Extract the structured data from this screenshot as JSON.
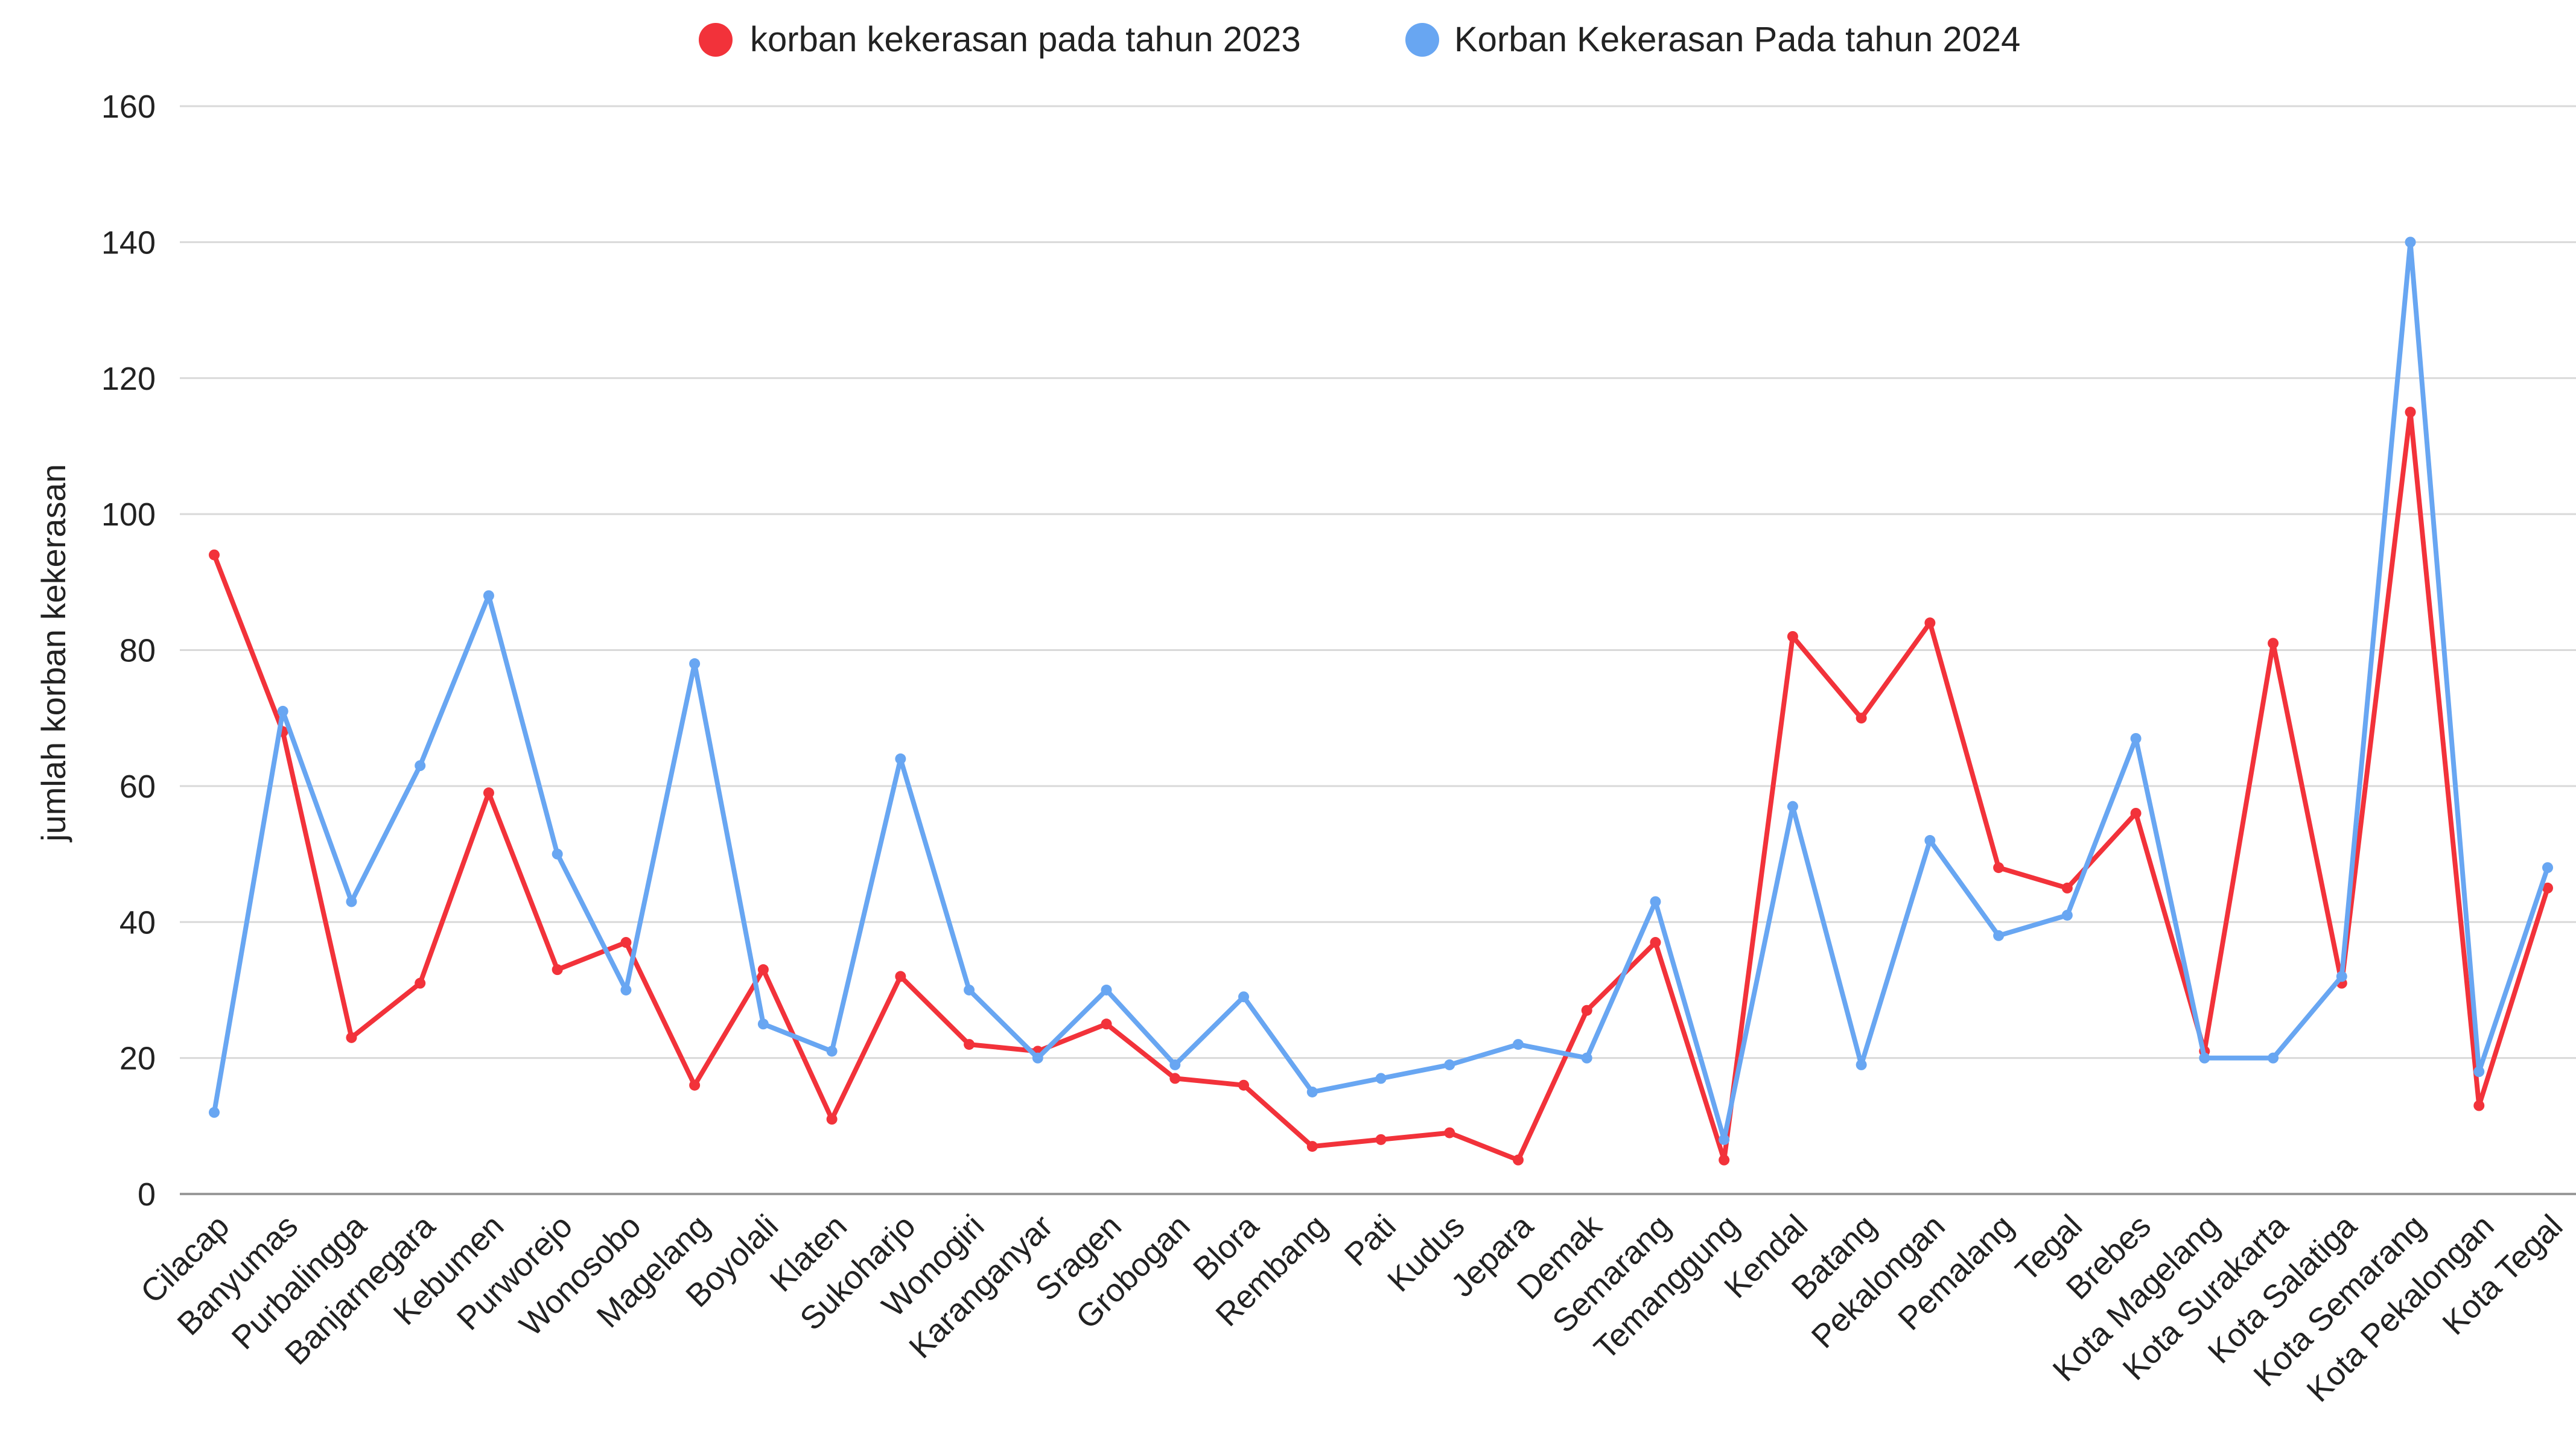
{
  "chart_data": {
    "type": "line",
    "title": "",
    "xlabel": "",
    "ylabel": "jumlah korban kekerasan",
    "ylim": [
      0,
      160
    ],
    "yticks": [
      0,
      20,
      40,
      60,
      80,
      100,
      120,
      140,
      160
    ],
    "grid": true,
    "legend_position": "top-center",
    "categories": [
      "Cilacap",
      "Banyumas",
      "Purbalingga",
      "Banjarnegara",
      "Kebumen",
      "Purworejo",
      "Wonosobo",
      "Magelang",
      "Boyolali",
      "Klaten",
      "Sukoharjo",
      "Wonogiri",
      "Karanganyar",
      "Sragen",
      "Grobogan",
      "Blora",
      "Rembang",
      "Pati",
      "Kudus",
      "Jepara",
      "Demak",
      "Semarang",
      "Temanggung",
      "Kendal",
      "Batang",
      "Pekalongan",
      "Pemalang",
      "Tegal",
      "Brebes",
      "Kota Magelang",
      "Kota Surakarta",
      "Kota Salatiga",
      "Kota Semarang",
      "Kota Pekalongan",
      "Kota Tegal"
    ],
    "series": [
      {
        "name": "korban kekerasan pada tahun 2023",
        "color": "#f2323a",
        "values": [
          94,
          68,
          23,
          31,
          59,
          33,
          37,
          16,
          33,
          11,
          32,
          22,
          21,
          25,
          17,
          16,
          7,
          8,
          9,
          5,
          27,
          37,
          5,
          82,
          70,
          84,
          48,
          45,
          56,
          21,
          81,
          31,
          115,
          13,
          45
        ]
      },
      {
        "name": "Korban Kekerasan Pada tahun 2024",
        "color": "#68a6f2",
        "values": [
          12,
          71,
          43,
          63,
          88,
          50,
          30,
          78,
          25,
          21,
          64,
          30,
          20,
          30,
          19,
          29,
          15,
          17,
          19,
          22,
          20,
          43,
          8,
          57,
          19,
          52,
          38,
          41,
          67,
          20,
          20,
          32,
          140,
          18,
          48
        ]
      }
    ]
  }
}
